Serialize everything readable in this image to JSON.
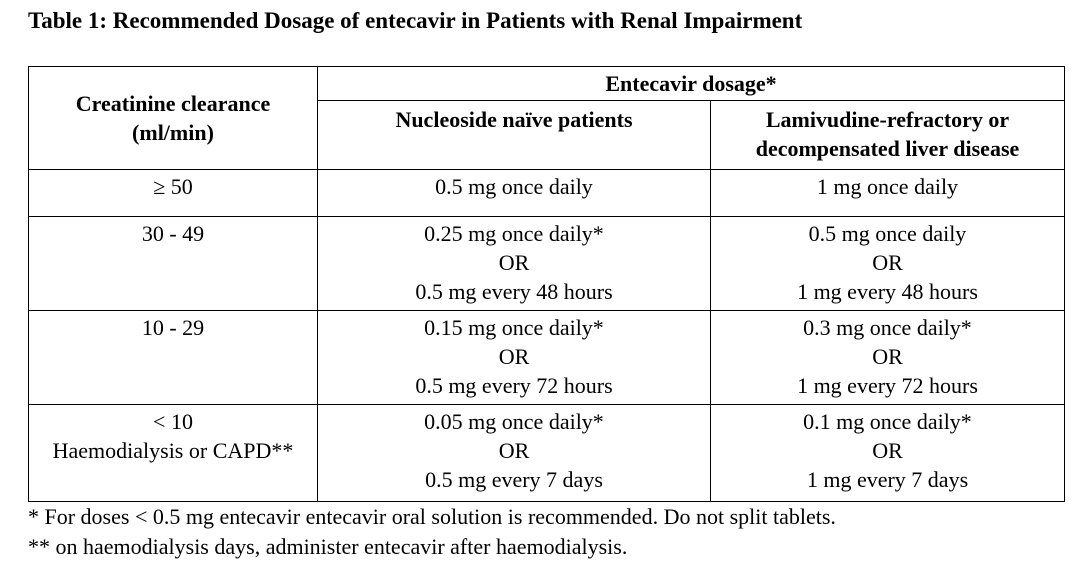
{
  "title": "Table 1: Recommended Dosage of entecavir in Patients with Renal Impairment",
  "table": {
    "header": {
      "col1_line1": "Creatinine clearance",
      "col1_line2": "(ml/min)",
      "group": "Entecavir dosage*",
      "col2": "Nucleoside naïve patients",
      "col3_line1": "Lamivudine-refractory or",
      "col3_line2": "decompensated liver disease"
    },
    "rows": [
      {
        "cc": [
          "≥ 50"
        ],
        "naive": [
          "0.5 mg once daily"
        ],
        "refractory": [
          "1 mg once daily"
        ]
      },
      {
        "cc": [
          "30 - 49"
        ],
        "naive": [
          "0.25 mg once daily*",
          "OR",
          "0.5 mg every 48 hours"
        ],
        "refractory": [
          "0.5 mg once daily",
          "OR",
          "1 mg every 48 hours"
        ]
      },
      {
        "cc": [
          "10 - 29"
        ],
        "naive": [
          "0.15 mg once daily*",
          "OR",
          "0.5 mg every 72 hours"
        ],
        "refractory": [
          "0.3 mg once daily*",
          "OR",
          "1 mg every 72 hours"
        ]
      },
      {
        "cc": [
          "< 10",
          "Haemodialysis or CAPD**"
        ],
        "naive": [
          "0.05 mg once daily*",
          "OR",
          "0.5 mg every 7 days"
        ],
        "refractory": [
          "0.1 mg once daily*",
          "OR",
          "1 mg every 7 days"
        ]
      }
    ]
  },
  "footnotes": [
    "* For doses < 0.5 mg entecavir entecavir oral solution is recommended. Do not split tablets.",
    "** on haemodialysis days, administer entecavir after haemodialysis."
  ]
}
